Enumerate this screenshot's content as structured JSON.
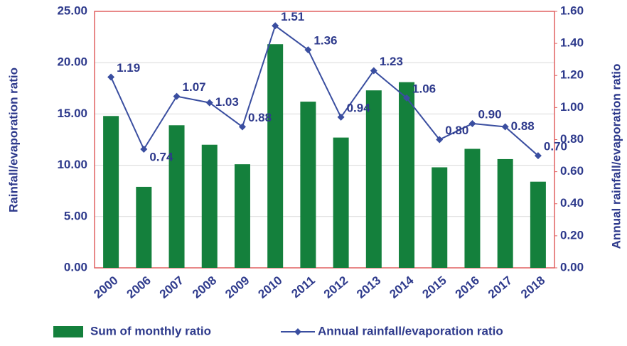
{
  "chart_data": {
    "type": "bar",
    "ylabel": "Rainfall/evaporation ratio",
    "y2label": "Annual rainfall/evaporation ratio",
    "categories": [
      "2000",
      "2006",
      "2007",
      "2008",
      "2009",
      "2010",
      "2011",
      "2012",
      "2013",
      "2014",
      "2015",
      "2016",
      "2017",
      "2018"
    ],
    "series": [
      {
        "name": "Sum of monthly ratio",
        "type": "bar",
        "color": "#14803c",
        "values": [
          14.8,
          7.9,
          13.9,
          12.0,
          10.1,
          21.8,
          16.2,
          12.7,
          17.3,
          18.1,
          9.8,
          11.6,
          10.6,
          8.4
        ]
      },
      {
        "name": "Annual rainfall/evaporation ratio",
        "type": "line",
        "axis": "y2",
        "color": "#3a4ea0",
        "values": [
          1.19,
          0.74,
          1.07,
          1.03,
          0.88,
          1.51,
          1.36,
          0.94,
          1.23,
          1.06,
          0.8,
          0.9,
          0.88,
          0.7
        ],
        "value_labels": [
          "1.19",
          "0.74",
          "1.07",
          "1.03",
          "0.88",
          "1.51",
          "1.36",
          "0.94",
          "1.23",
          "1.06",
          "0.80",
          "0.90",
          "0.88",
          "0.70"
        ]
      }
    ],
    "ylim": [
      0,
      25
    ],
    "yticks": [
      {
        "value": 0,
        "label": "0.00"
      },
      {
        "value": 5,
        "label": "5.00"
      },
      {
        "value": 10,
        "label": "10.00"
      },
      {
        "value": 15,
        "label": "15.00"
      },
      {
        "value": 20,
        "label": "20.00"
      },
      {
        "value": 25,
        "label": "25.00"
      }
    ],
    "y2lim": [
      0,
      1.6
    ],
    "y2ticks": [
      {
        "value": 0,
        "label": "0.00"
      },
      {
        "value": 0.2,
        "label": "0.20"
      },
      {
        "value": 0.4,
        "label": "0.40"
      },
      {
        "value": 0.6,
        "label": "0.60"
      },
      {
        "value": 0.8,
        "label": "0.80"
      },
      {
        "value": 1.0,
        "label": "1.00"
      },
      {
        "value": 1.2,
        "label": "1.20"
      },
      {
        "value": 1.4,
        "label": "1.40"
      },
      {
        "value": 1.6,
        "label": "1.60"
      }
    ],
    "grid": true,
    "legend": "bottom"
  }
}
